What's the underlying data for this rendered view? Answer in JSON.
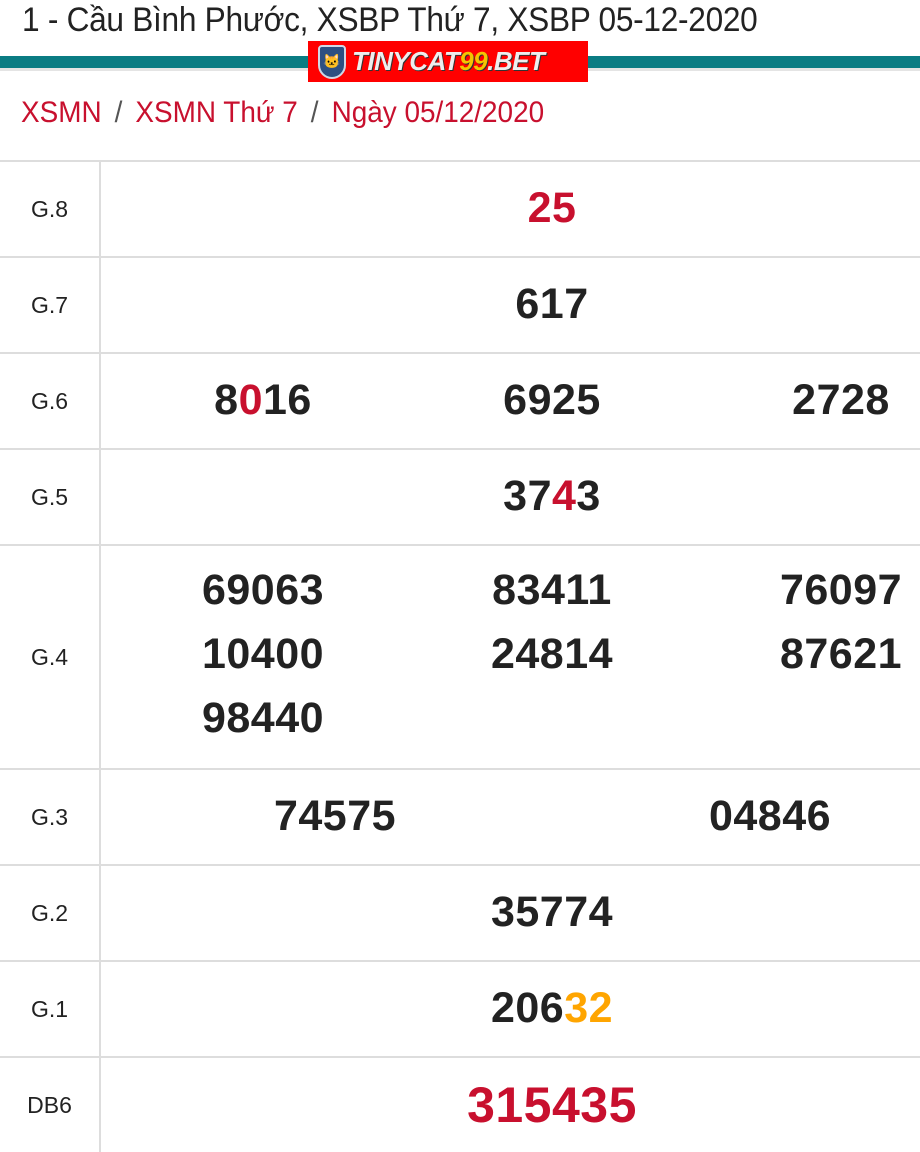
{
  "header": {
    "title": "1 - Cầu Bình Phước, XSBP Thứ 7, XSBP 05-12-2020"
  },
  "logo": {
    "text": "TINYCAT99.BET",
    "background": "#ff0000"
  },
  "colors": {
    "accent_bar": "#0a7c83",
    "link": "#c8102e",
    "highlight_red": "#c8102e",
    "highlight_orange": "#ffa500"
  },
  "breadcrumb": [
    {
      "label": "XSMN"
    },
    {
      "label": "XSMN Thứ 7"
    },
    {
      "label": "Ngày 05/12/2020"
    }
  ],
  "breadcrumb_separator": "/",
  "results": [
    {
      "label": "G.8",
      "layout": "1",
      "numbers": [
        [
          {
            "t": "25",
            "c": "red"
          }
        ]
      ]
    },
    {
      "label": "G.7",
      "layout": "1",
      "numbers": [
        [
          {
            "t": "617"
          }
        ]
      ]
    },
    {
      "label": "G.6",
      "layout": "3",
      "numbers": [
        [
          {
            "t": "8"
          },
          {
            "t": "0",
            "c": "red"
          },
          {
            "t": "16"
          }
        ],
        [
          {
            "t": "6925"
          }
        ],
        [
          {
            "t": "2728"
          }
        ]
      ]
    },
    {
      "label": "G.5",
      "layout": "1",
      "numbers": [
        [
          {
            "t": "37"
          },
          {
            "t": "4",
            "c": "red"
          },
          {
            "t": "3"
          }
        ]
      ]
    },
    {
      "label": "G.4",
      "layout": "3",
      "numbers": [
        [
          {
            "t": "69063"
          }
        ],
        [
          {
            "t": "83411"
          }
        ],
        [
          {
            "t": "76097"
          }
        ],
        [
          {
            "t": "10400"
          }
        ],
        [
          {
            "t": "24814"
          }
        ],
        [
          {
            "t": "87621"
          }
        ],
        [
          {
            "t": "98440"
          }
        ]
      ]
    },
    {
      "label": "G.3",
      "layout": "2",
      "numbers": [
        [
          {
            "t": "74575"
          }
        ],
        [
          {
            "t": "04846"
          }
        ]
      ]
    },
    {
      "label": "G.2",
      "layout": "1",
      "numbers": [
        [
          {
            "t": "35774"
          }
        ]
      ]
    },
    {
      "label": "G.1",
      "layout": "1",
      "numbers": [
        [
          {
            "t": "206"
          },
          {
            "t": "32",
            "c": "orange"
          }
        ]
      ]
    },
    {
      "label": "DB6",
      "layout": "1",
      "special": true,
      "numbers": [
        [
          {
            "t": "315435"
          }
        ]
      ]
    }
  ]
}
